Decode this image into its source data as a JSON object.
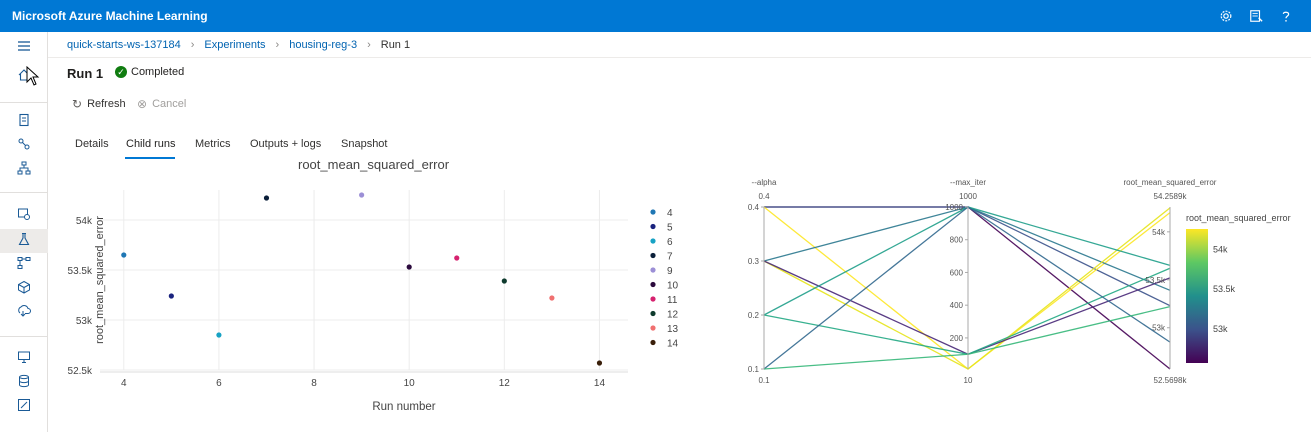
{
  "header": {
    "title": "Microsoft Azure Machine Learning",
    "icons": [
      "gear-icon",
      "feedback-icon",
      "help-icon"
    ]
  },
  "sidebar": {
    "icons": [
      "hamburger-icon",
      "home-icon",
      "notebook-icon",
      "automl-icon",
      "designer-icon",
      "datasets-icon",
      "experiments-icon",
      "pipelines-icon",
      "models-icon",
      "endpoints-icon",
      "compute-icon",
      "datastores-icon",
      "labeling-icon"
    ],
    "active": "experiments-icon"
  },
  "breadcrumb": {
    "items": [
      "quick-starts-ws-137184",
      "Experiments",
      "housing-reg-3",
      "Run 1"
    ]
  },
  "run": {
    "title": "Run 1",
    "status": "Completed",
    "status_color": "#107c10"
  },
  "commands": {
    "refresh": "Refresh",
    "cancel": "Cancel"
  },
  "tabs": {
    "items": [
      "Details",
      "Child runs",
      "Metrics",
      "Outputs + logs",
      "Snapshot"
    ],
    "active": "Child runs"
  },
  "chart_data": [
    {
      "type": "scatter",
      "title": "root_mean_squared_error",
      "xlabel": "Run number",
      "ylabel": "root_mean_squared_error",
      "xlim": [
        3.5,
        14.6
      ],
      "ylim": [
        52500,
        54300
      ],
      "x_ticks": [
        "4",
        "6",
        "8",
        "10",
        "12",
        "14"
      ],
      "y_ticks": [
        "52.5k",
        "53k",
        "53.5k",
        "54k"
      ],
      "grid": true,
      "legend": "right",
      "series": [
        {
          "name": "4",
          "x": 4,
          "y": 53650,
          "color": "#1f77b4"
        },
        {
          "name": "5",
          "x": 5,
          "y": 53240,
          "color": "#1a237e"
        },
        {
          "name": "6",
          "x": 6,
          "y": 52850,
          "color": "#17a2c4"
        },
        {
          "name": "7",
          "x": 7,
          "y": 54220,
          "color": "#0b1f3a"
        },
        {
          "name": "9",
          "x": 9,
          "y": 54250,
          "color": "#9c8fd6"
        },
        {
          "name": "10",
          "x": 10,
          "y": 53530,
          "color": "#2b0a3d"
        },
        {
          "name": "11",
          "x": 11,
          "y": 53620,
          "color": "#d6226f"
        },
        {
          "name": "12",
          "x": 12,
          "y": 53390,
          "color": "#0f3b2e"
        },
        {
          "name": "13",
          "x": 13,
          "y": 53220,
          "color": "#f07070"
        },
        {
          "name": "14",
          "x": 14,
          "y": 52570,
          "color": "#3a1f0a"
        }
      ]
    },
    {
      "type": "parallel_coordinates",
      "dimensions": [
        {
          "label": "--alpha",
          "range": [
            0.1,
            0.4
          ],
          "range_labels": [
            "0.1",
            "0.4"
          ],
          "ticks": [
            0.1,
            0.2,
            0.3,
            0.4
          ],
          "tick_labels": [
            "0.1",
            "0.2",
            "0.3",
            "0.4"
          ]
        },
        {
          "label": "--max_iter",
          "range": [
            10,
            1000
          ],
          "range_labels": [
            "10",
            "1000"
          ],
          "ticks": [
            200,
            400,
            600,
            800,
            1000
          ],
          "tick_labels": [
            "200",
            "400",
            "600",
            "800",
            "1000"
          ]
        },
        {
          "label": "root_mean_squared_error",
          "range": [
            52569.8,
            54258.9
          ],
          "range_labels": [
            "52.5698k",
            "54.2589k"
          ],
          "ticks": [
            53000,
            53500,
            54000
          ],
          "tick_labels": [
            "53k",
            "53.5k",
            "54k"
          ]
        }
      ],
      "lines": [
        {
          "alpha": 0.4,
          "max_iter": 1000,
          "rmse": 52570,
          "color": "#440154"
        },
        {
          "alpha": 0.4,
          "max_iter": 1000,
          "rmse": 53230,
          "color": "#3b528b"
        },
        {
          "alpha": 0.4,
          "max_iter": 10,
          "rmse": 54200,
          "color": "#fde725"
        },
        {
          "alpha": 0.3,
          "max_iter": 1000,
          "rmse": 53390,
          "color": "#2a788e"
        },
        {
          "alpha": 0.3,
          "max_iter": 10,
          "rmse": 54250,
          "color": "#e6e419"
        },
        {
          "alpha": 0.3,
          "max_iter": 100,
          "rmse": 53520,
          "color": "#482878"
        },
        {
          "alpha": 0.2,
          "max_iter": 1000,
          "rmse": 53650,
          "color": "#1f9e89"
        },
        {
          "alpha": 0.2,
          "max_iter": 100,
          "rmse": 53620,
          "color": "#22a884"
        },
        {
          "alpha": 0.1,
          "max_iter": 1000,
          "rmse": 52850,
          "color": "#31688e"
        },
        {
          "alpha": 0.1,
          "max_iter": 100,
          "rmse": 53220,
          "color": "#35b779"
        }
      ],
      "colorbar": {
        "title": "root_mean_squared_error",
        "tick_labels": [
          "54k",
          "53.5k",
          "53k"
        ],
        "ticks": [
          54000,
          53500,
          53000
        ],
        "range": [
          52569.8,
          54258.9
        ],
        "colors": [
          "#440154",
          "#3b528b",
          "#21908c",
          "#5dc863",
          "#fde725"
        ]
      }
    }
  ]
}
